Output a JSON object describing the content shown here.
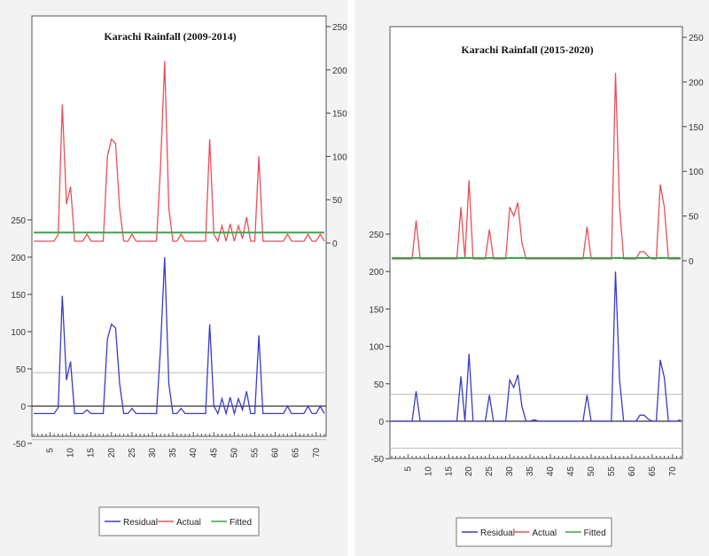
{
  "colors": {
    "residual": "#3b3bc8",
    "actual": "#e8505a",
    "fitted": "#3aa64a"
  },
  "chart_data": [
    {
      "type": "line",
      "title": "Karachi Rainfall (2009-2014)",
      "x_ticks": [
        5,
        10,
        15,
        20,
        25,
        30,
        35,
        40,
        45,
        50,
        55,
        60,
        65,
        70
      ],
      "xlim": [
        1,
        72
      ],
      "right_axis": {
        "ylim": [
          0,
          250
        ],
        "ticks": [
          0,
          50,
          100,
          150,
          200,
          250
        ]
      },
      "left_axis": {
        "ylim": [
          -50,
          250
        ],
        "ticks": [
          -50,
          0,
          50,
          100,
          150,
          200,
          250
        ]
      },
      "legend": [
        "Residual",
        "Actual",
        "Fitted"
      ],
      "series": [
        {
          "name": "Actual",
          "axis": "right",
          "x": [
            1,
            2,
            3,
            4,
            5,
            6,
            7,
            8,
            9,
            10,
            11,
            12,
            13,
            14,
            15,
            16,
            17,
            18,
            19,
            20,
            21,
            22,
            23,
            24,
            25,
            26,
            27,
            28,
            29,
            30,
            31,
            32,
            33,
            34,
            35,
            36,
            37,
            38,
            39,
            40,
            41,
            42,
            43,
            44,
            45,
            46,
            47,
            48,
            49,
            50,
            51,
            52,
            53,
            54,
            55,
            56,
            57,
            58,
            59,
            60,
            61,
            62,
            63,
            64,
            65,
            66,
            67,
            68,
            69,
            70,
            71,
            72
          ],
          "values": [
            2,
            2,
            2,
            2,
            2,
            2,
            10,
            160,
            45,
            65,
            2,
            2,
            2,
            10,
            2,
            2,
            2,
            2,
            100,
            120,
            115,
            40,
            2,
            2,
            10,
            2,
            2,
            2,
            2,
            2,
            2,
            90,
            210,
            40,
            2,
            2,
            10,
            2,
            2,
            2,
            2,
            2,
            2,
            120,
            10,
            2,
            20,
            2,
            22,
            2,
            20,
            5,
            30,
            2,
            2,
            100,
            2,
            2,
            2,
            2,
            2,
            2,
            10,
            2,
            2,
            2,
            2,
            10,
            2,
            2,
            10,
            2
          ]
        },
        {
          "name": "Fitted",
          "axis": "right",
          "x": [
            1,
            72
          ],
          "values": [
            12,
            12
          ]
        },
        {
          "name": "Residual",
          "axis": "left",
          "x": [
            1,
            2,
            3,
            4,
            5,
            6,
            7,
            8,
            9,
            10,
            11,
            12,
            13,
            14,
            15,
            16,
            17,
            18,
            19,
            20,
            21,
            22,
            23,
            24,
            25,
            26,
            27,
            28,
            29,
            30,
            31,
            32,
            33,
            34,
            35,
            36,
            37,
            38,
            39,
            40,
            41,
            42,
            43,
            44,
            45,
            46,
            47,
            48,
            49,
            50,
            51,
            52,
            53,
            54,
            55,
            56,
            57,
            58,
            59,
            60,
            61,
            62,
            63,
            64,
            65,
            66,
            67,
            68,
            69,
            70,
            71,
            72
          ],
          "values": [
            -10,
            -10,
            -10,
            -10,
            -10,
            -10,
            -2,
            148,
            35,
            60,
            -10,
            -10,
            -10,
            -5,
            -10,
            -10,
            -10,
            -10,
            90,
            110,
            105,
            30,
            -10,
            -10,
            -3,
            -10,
            -10,
            -10,
            -10,
            -10,
            -10,
            80,
            200,
            30,
            -10,
            -10,
            -3,
            -10,
            -10,
            -10,
            -10,
            -10,
            -10,
            110,
            0,
            -10,
            10,
            -10,
            12,
            -10,
            10,
            -5,
            20,
            -10,
            -10,
            95,
            -10,
            -10,
            -10,
            -10,
            -10,
            -10,
            0,
            -10,
            -10,
            -10,
            -10,
            0,
            -10,
            -10,
            0,
            -10
          ]
        }
      ]
    },
    {
      "type": "line",
      "title": "Karachi Rainfall (2015-2020)",
      "x_ticks": [
        5,
        10,
        15,
        20,
        25,
        30,
        35,
        40,
        45,
        50,
        55,
        60,
        65,
        70
      ],
      "xlim": [
        1,
        72
      ],
      "right_axis": {
        "ylim": [
          0,
          250
        ],
        "ticks": [
          0,
          50,
          100,
          150,
          200,
          250
        ]
      },
      "left_axis": {
        "ylim": [
          -50,
          250
        ],
        "ticks": [
          -50,
          0,
          50,
          100,
          150,
          200,
          250
        ]
      },
      "legend": [
        "Residual",
        "Actual",
        "Fitted"
      ],
      "series": [
        {
          "name": "Actual",
          "axis": "right",
          "x": [
            1,
            2,
            3,
            4,
            5,
            6,
            7,
            8,
            9,
            10,
            11,
            12,
            13,
            14,
            15,
            16,
            17,
            18,
            19,
            20,
            21,
            22,
            23,
            24,
            25,
            26,
            27,
            28,
            29,
            30,
            31,
            32,
            33,
            34,
            35,
            36,
            37,
            38,
            39,
            40,
            41,
            42,
            43,
            44,
            45,
            46,
            47,
            48,
            49,
            50,
            51,
            52,
            53,
            54,
            55,
            56,
            57,
            58,
            59,
            60,
            61,
            62,
            63,
            64,
            65,
            66,
            67,
            68,
            69,
            70,
            71,
            72
          ],
          "values": [
            2,
            2,
            2,
            2,
            2,
            2,
            45,
            2,
            2,
            2,
            2,
            2,
            2,
            2,
            2,
            2,
            2,
            60,
            2,
            90,
            2,
            2,
            2,
            2,
            35,
            2,
            2,
            2,
            2,
            60,
            50,
            65,
            20,
            2,
            2,
            2,
            2,
            2,
            2,
            2,
            2,
            2,
            2,
            2,
            2,
            2,
            2,
            2,
            38,
            2,
            2,
            2,
            2,
            2,
            2,
            210,
            60,
            2,
            2,
            2,
            2,
            10,
            10,
            5,
            2,
            2,
            85,
            60,
            2,
            2,
            2,
            2
          ]
        },
        {
          "name": "Fitted",
          "axis": "right",
          "x": [
            1,
            72
          ],
          "values": [
            3,
            3
          ]
        },
        {
          "name": "Residual",
          "axis": "left",
          "x": [
            1,
            2,
            3,
            4,
            5,
            6,
            7,
            8,
            9,
            10,
            11,
            12,
            13,
            14,
            15,
            16,
            17,
            18,
            19,
            20,
            21,
            22,
            23,
            24,
            25,
            26,
            27,
            28,
            29,
            30,
            31,
            32,
            33,
            34,
            35,
            36,
            37,
            38,
            39,
            40,
            41,
            42,
            43,
            44,
            45,
            46,
            47,
            48,
            49,
            50,
            51,
            52,
            53,
            54,
            55,
            56,
            57,
            58,
            59,
            60,
            61,
            62,
            63,
            64,
            65,
            66,
            67,
            68,
            69,
            70,
            71,
            72
          ],
          "values": [
            0,
            0,
            0,
            0,
            0,
            0,
            40,
            0,
            0,
            0,
            0,
            0,
            0,
            0,
            0,
            0,
            0,
            60,
            0,
            90,
            0,
            0,
            0,
            0,
            35,
            0,
            0,
            0,
            0,
            55,
            45,
            62,
            20,
            0,
            0,
            2,
            0,
            0,
            0,
            0,
            0,
            0,
            0,
            0,
            0,
            0,
            0,
            0,
            35,
            0,
            0,
            0,
            0,
            0,
            0,
            200,
            55,
            0,
            0,
            0,
            0,
            8,
            8,
            3,
            0,
            0,
            82,
            58,
            0,
            0,
            0,
            2
          ]
        }
      ]
    }
  ]
}
